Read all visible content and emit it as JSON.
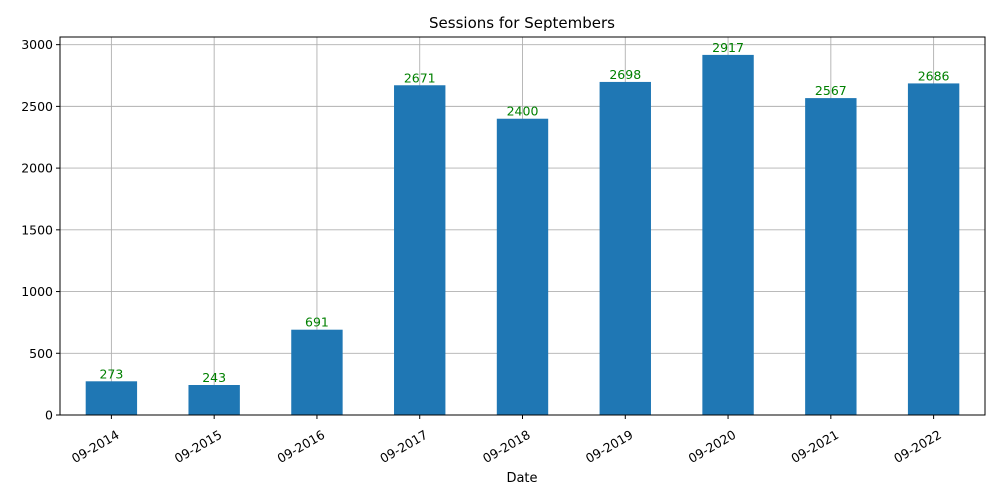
{
  "chart_data": {
    "type": "bar",
    "title": "Sessions for Septembers",
    "xlabel": "Date",
    "ylabel": "",
    "categories": [
      "09-2014",
      "09-2015",
      "09-2016",
      "09-2017",
      "09-2018",
      "09-2019",
      "09-2020",
      "09-2021",
      "09-2022"
    ],
    "values": [
      273,
      243,
      691,
      2671,
      2400,
      2698,
      2917,
      2567,
      2686
    ],
    "data_labels": [
      "273",
      "243",
      "691",
      "2671",
      "2400",
      "2698",
      "2917",
      "2567",
      "2686"
    ],
    "ylim": [
      0,
      3062
    ],
    "yticks": [
      0,
      500,
      1000,
      1500,
      2000,
      2500,
      3000
    ],
    "ytick_labels": [
      "0",
      "500",
      "1000",
      "1500",
      "2000",
      "2500",
      "3000"
    ],
    "grid": true,
    "legend": "none",
    "bar_color": "#1f77b4",
    "label_color": "#008000",
    "xtick_rotation_deg": 30
  }
}
